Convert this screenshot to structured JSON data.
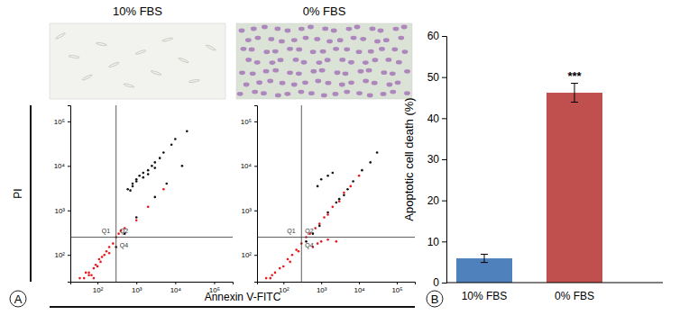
{
  "chart_data": [
    {
      "type": "scatter",
      "title": "10% FBS",
      "panel_label": "A",
      "x_label": "Annexin V-FITC",
      "y_label": "PI",
      "log": true,
      "xlim": [
        20,
        300000
      ],
      "ylim": [
        25,
        230000
      ],
      "xticks": [
        {
          "value": 100,
          "label": "10²"
        },
        {
          "value": 1000,
          "label": "10³"
        },
        {
          "value": 10000,
          "label": "10⁴"
        },
        {
          "value": 100000,
          "label": "10⁵"
        }
      ],
      "yticks": [
        {
          "value": 100,
          "label": "10²"
        },
        {
          "value": 1000,
          "label": "10³"
        },
        {
          "value": 10000,
          "label": "10⁴"
        },
        {
          "value": 100000,
          "label": "10⁵"
        }
      ],
      "gate_x": 300,
      "gate_y": 250,
      "annotations": [
        "Q1",
        "Q2",
        "Q4"
      ],
      "series": [
        {
          "color": "#e8161b",
          "x": [
            35,
            45,
            50,
            60,
            70,
            80,
            90,
            100,
            110,
            130,
            150,
            170,
            200,
            250,
            300,
            350,
            400,
            500,
            60,
            80,
            120,
            200,
            1000,
            2000,
            5000
          ],
          "values": [
            30,
            30,
            40,
            40,
            35,
            50,
            60,
            55,
            80,
            90,
            100,
            120,
            150,
            180,
            250,
            300,
            350,
            400,
            35,
            30,
            70,
            110,
            600,
            1200,
            3000
          ]
        },
        {
          "color": "#111111",
          "x": [
            600,
            800,
            1000,
            1200,
            1500,
            2000,
            2500,
            3000,
            4000,
            800,
            1000,
            1500,
            2000,
            700,
            3000,
            5000,
            8000,
            10000,
            20000,
            300,
            500,
            1000,
            3000,
            6000,
            15000
          ],
          "values": [
            3000,
            4000,
            5000,
            6000,
            7000,
            8000,
            10000,
            12000,
            15000,
            3500,
            4500,
            5500,
            6500,
            2800,
            9000,
            20000,
            30000,
            40000,
            60000,
            150,
            300,
            700,
            2000,
            4000,
            10000
          ]
        }
      ]
    },
    {
      "type": "scatter",
      "title": "0% FBS",
      "log": true,
      "xlim": [
        20,
        300000
      ],
      "ylim": [
        25,
        230000
      ],
      "xticks": [
        {
          "value": 100,
          "label": "10²"
        },
        {
          "value": 1000,
          "label": "10³"
        },
        {
          "value": 10000,
          "label": "10⁴"
        },
        {
          "value": 100000,
          "label": "10⁵"
        }
      ],
      "yticks": [
        {
          "value": 100,
          "label": "10²"
        },
        {
          "value": 1000,
          "label": "10³"
        },
        {
          "value": 10000,
          "label": "10⁴"
        },
        {
          "value": 100000,
          "label": "10⁵"
        }
      ],
      "gate_x": 300,
      "gate_y": 250,
      "annotations": [
        "Q1",
        "Q2",
        "Q4"
      ],
      "series": [
        {
          "color": "#e8161b",
          "x": [
            35,
            45,
            60,
            80,
            100,
            130,
            170,
            220,
            300,
            400,
            500,
            700,
            900,
            1200,
            1500,
            2000,
            3000,
            4000,
            6000,
            600,
            800,
            1000,
            50,
            150,
            250,
            10000,
            1500,
            2500
          ],
          "values": [
            30,
            30,
            40,
            50,
            55,
            80,
            100,
            130,
            180,
            250,
            300,
            400,
            500,
            700,
            800,
            1200,
            1600,
            2500,
            3500,
            150,
            180,
            200,
            35,
            70,
            120,
            6000,
            220,
            200
          ]
        },
        {
          "color": "#111111",
          "x": [
            400,
            600,
            900,
            1500,
            2500,
            4000,
            7000,
            12000,
            20000,
            1000,
            1500,
            2000,
            30000,
            800,
            5000,
            3000
          ],
          "values": [
            200,
            300,
            450,
            900,
            1500,
            2200,
            4500,
            8000,
            12000,
            5000,
            6000,
            7000,
            20000,
            3500,
            3000,
            1800
          ]
        }
      ]
    },
    {
      "type": "bar",
      "panel_label": "B",
      "y_label": "Apoptotic cell death (%)",
      "categories": [
        "10% FBS",
        "0% FBS"
      ],
      "values": [
        5.9,
        46.2
      ],
      "errors": [
        1.0,
        2.3
      ],
      "colors": [
        "#4f81bd",
        "#c0504d"
      ],
      "ylim": [
        0,
        60
      ],
      "yticks": [
        0,
        10,
        20,
        30,
        40,
        50,
        60
      ],
      "annotations": [
        "***"
      ]
    }
  ]
}
